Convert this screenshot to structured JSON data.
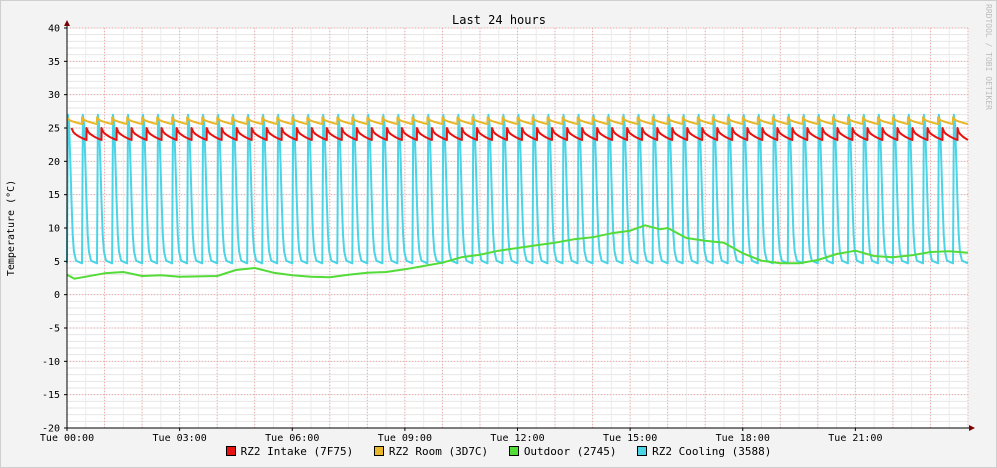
{
  "watermark": "RRDTOOL / TOBI OETIKER",
  "chart_data": {
    "type": "line",
    "title": "Last 24 hours",
    "ylabel": "Temperature (°C)",
    "xlabel": "",
    "ylim": [
      -20,
      40
    ],
    "yticks": [
      40,
      35,
      30,
      25,
      20,
      15,
      10,
      5,
      0,
      -5,
      -10,
      -15,
      -20
    ],
    "xlim": [
      "Tue 00:00",
      "Wed 00:00"
    ],
    "xticks": [
      "Tue 00:00",
      "Tue 03:00",
      "Tue 06:00",
      "Tue 09:00",
      "Tue 12:00",
      "Tue 15:00",
      "Tue 18:00",
      "Tue 21:00"
    ],
    "grid": true,
    "legend_position": "bottom",
    "series": [
      {
        "name": "RZ2 Intake (7F75)",
        "color": "#e81212",
        "kind": "sawtooth",
        "cycle_count": 60,
        "low": 23.2,
        "high": 25.0
      },
      {
        "name": "RZ2 Room (3D7C)",
        "color": "#e8b82a",
        "kind": "sawtooth",
        "cycle_count": 60,
        "low": 25.6,
        "high": 26.6
      },
      {
        "name": "Outdoor (2745)",
        "color": "#53db37",
        "kind": "line",
        "x_hours": [
          0,
          0.2,
          0.5,
          1,
          1.5,
          2,
          2.5,
          3,
          4,
          4.5,
          5,
          5.5,
          6,
          6.5,
          7,
          7.5,
          8,
          8.5,
          9,
          9.5,
          10,
          10.5,
          11,
          11.5,
          12,
          12.5,
          13,
          13.5,
          14,
          14.5,
          15,
          15.4,
          15.8,
          16,
          16.5,
          17,
          17.5,
          18,
          18.5,
          19,
          19.5,
          20,
          20.5,
          21,
          21.5,
          22,
          22.5,
          23,
          23.5,
          24
        ],
        "values": [
          3.0,
          2.4,
          2.7,
          3.2,
          3.4,
          2.8,
          2.9,
          2.7,
          2.8,
          3.7,
          4.0,
          3.3,
          2.9,
          2.7,
          2.6,
          3.0,
          3.3,
          3.4,
          3.8,
          4.3,
          4.8,
          5.6,
          6.0,
          6.6,
          7.0,
          7.4,
          7.8,
          8.3,
          8.6,
          9.2,
          9.6,
          10.4,
          9.8,
          10.0,
          8.5,
          8.1,
          7.8,
          6.2,
          5.1,
          4.7,
          4.7,
          5.2,
          6.1,
          6.6,
          5.8,
          5.6,
          5.9,
          6.4,
          6.5,
          6.3
        ]
      },
      {
        "name": "RZ2 Cooling (3588)",
        "color": "#4ad4e6",
        "kind": "spikes",
        "cycle_count": 60,
        "low": 4.7,
        "high": 27.0
      }
    ]
  }
}
